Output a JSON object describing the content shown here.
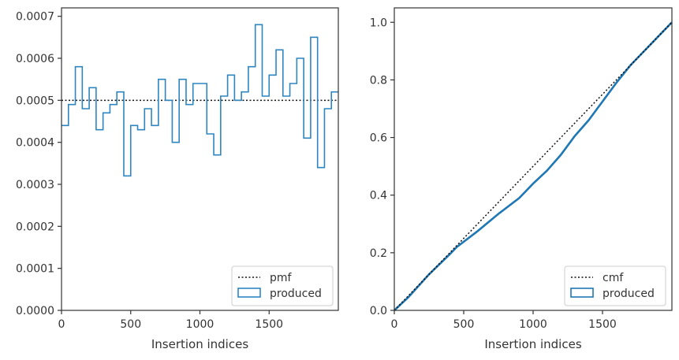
{
  "chart_data": [
    {
      "type": "histogram-step",
      "xlabel": "Insertion indices",
      "ylabel": "",
      "xlim": [
        0,
        2000
      ],
      "ylim": [
        0,
        0.00072
      ],
      "xticks": [
        {
          "value": 0,
          "label": "0"
        },
        {
          "value": 500,
          "label": "500"
        },
        {
          "value": 1000,
          "label": "1000"
        },
        {
          "value": 1500,
          "label": "1500"
        }
      ],
      "yticks": [
        {
          "value": 0.0,
          "label": "0.0000"
        },
        {
          "value": 0.0001,
          "label": "0.0001"
        },
        {
          "value": 0.0002,
          "label": "0.0002"
        },
        {
          "value": 0.0003,
          "label": "0.0003"
        },
        {
          "value": 0.0004,
          "label": "0.0004"
        },
        {
          "value": 0.0005,
          "label": "0.0005"
        },
        {
          "value": 0.0006,
          "label": "0.0006"
        },
        {
          "value": 0.0007,
          "label": "0.0007"
        }
      ],
      "bin_width": 50,
      "reference": {
        "name": "pmf",
        "value": 0.0005
      },
      "series": [
        {
          "name": "produced",
          "values": [
            0.00044,
            0.00049,
            0.00058,
            0.00048,
            0.00053,
            0.00043,
            0.00047,
            0.00049,
            0.00052,
            0.00032,
            0.00044,
            0.00043,
            0.00048,
            0.00044,
            0.00055,
            0.0005,
            0.0004,
            0.00055,
            0.00049,
            0.00054,
            0.00054,
            0.00042,
            0.00037,
            0.00051,
            0.00056,
            0.0005,
            0.00052,
            0.00058,
            0.00068,
            0.00051,
            0.00056,
            0.00062,
            0.00051,
            0.00054,
            0.0006,
            0.00041,
            0.00065,
            0.00034,
            0.00048,
            0.00052
          ]
        }
      ],
      "legend": {
        "position": "bottom-right",
        "entries": [
          "pmf",
          "produced"
        ]
      },
      "colors": {
        "series": "#2e86c1",
        "reference": "#111111"
      }
    },
    {
      "type": "line",
      "xlabel": "Insertion indices",
      "ylabel": "",
      "xlim": [
        0,
        2000
      ],
      "ylim": [
        0,
        1.05
      ],
      "xticks": [
        {
          "value": 0,
          "label": "0"
        },
        {
          "value": 500,
          "label": "500"
        },
        {
          "value": 1000,
          "label": "1000"
        },
        {
          "value": 1500,
          "label": "1500"
        }
      ],
      "yticks": [
        {
          "value": 0.0,
          "label": "0.0"
        },
        {
          "value": 0.2,
          "label": "0.2"
        },
        {
          "value": 0.4,
          "label": "0.4"
        },
        {
          "value": 0.6,
          "label": "0.6"
        },
        {
          "value": 0.8,
          "label": "0.8"
        },
        {
          "value": 1.0,
          "label": "1.0"
        }
      ],
      "reference": {
        "name": "cmf",
        "x": [
          0,
          2000
        ],
        "y": [
          0,
          1.0
        ]
      },
      "series": [
        {
          "name": "produced",
          "x": [
            0,
            100,
            250,
            400,
            450,
            600,
            750,
            900,
            1000,
            1100,
            1200,
            1300,
            1400,
            1500,
            1600,
            1700,
            1800,
            1900,
            2000
          ],
          "y": [
            0,
            0.045,
            0.125,
            0.195,
            0.22,
            0.275,
            0.335,
            0.39,
            0.44,
            0.485,
            0.54,
            0.605,
            0.66,
            0.725,
            0.79,
            0.85,
            0.9,
            0.95,
            1.0
          ]
        }
      ],
      "legend": {
        "position": "bottom-right",
        "entries": [
          "cmf",
          "produced"
        ]
      },
      "colors": {
        "series": "#1f77b4",
        "reference": "#111111"
      }
    }
  ]
}
